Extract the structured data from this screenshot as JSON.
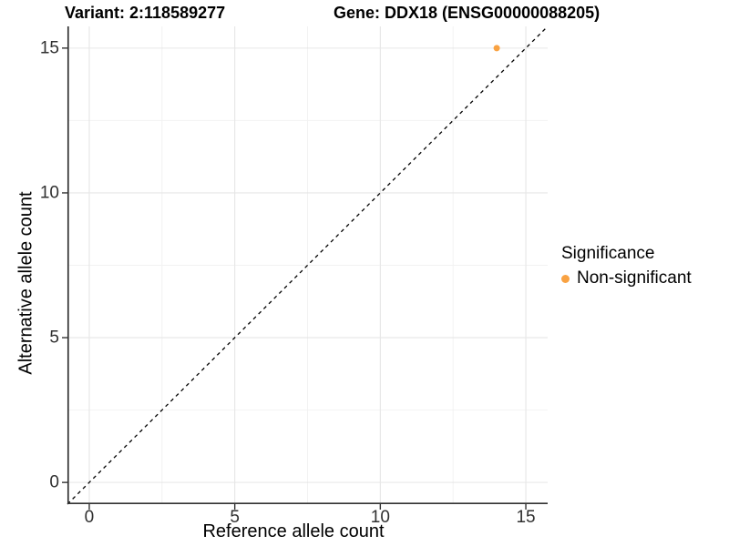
{
  "figure": {
    "title_left": "Variant: 2:118589277",
    "title_right": "Gene: DDX18 (ENSG00000088205)"
  },
  "chart_data": {
    "type": "scatter",
    "title": "Variant: 2:118589277   Gene: DDX18 (ENSG00000088205)",
    "xlabel": "Reference allele count",
    "ylabel": "Alternative allele count",
    "xlim": [
      -0.75,
      15.75
    ],
    "ylim": [
      -0.75,
      15.75
    ],
    "x_ticks": [
      0,
      5,
      10,
      15
    ],
    "y_ticks": [
      0,
      5,
      10,
      15
    ],
    "x_minor_ticks": [
      2.5,
      7.5,
      12.5
    ],
    "y_minor_ticks": [
      2.5,
      7.5,
      12.5
    ],
    "grid": "major+minor",
    "legend_position": "right",
    "identity_line": {
      "type": "abline",
      "slope": 1,
      "intercept": 0,
      "style": "dashed",
      "color": "#000000"
    },
    "series": [
      {
        "name": "Non-significant",
        "color": "#F9A242",
        "points": [
          {
            "x": 14,
            "y": 15
          }
        ]
      }
    ],
    "legend": {
      "title": "Significance",
      "entries": [
        {
          "label": "Non-significant",
          "color": "#F9A242"
        }
      ]
    },
    "style": {
      "major_grid_color": "#E6E6E6",
      "minor_grid_color": "#F2F2F2",
      "axis_line_color": "#333333",
      "tick_color": "#333333",
      "point_radius": 3.5,
      "panel_background": "#FFFFFF"
    }
  }
}
